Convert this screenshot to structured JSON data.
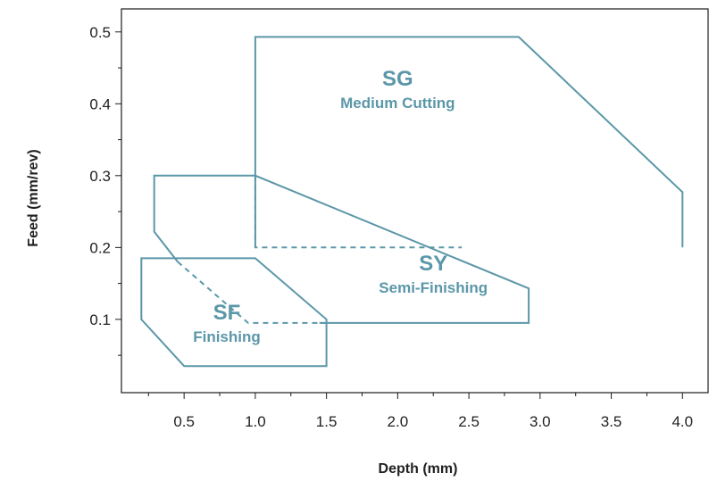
{
  "chart_data": {
    "type": "area",
    "xlabel": "Depth (mm)",
    "ylabel": "Feed (mm/rev)",
    "xlim": [
      0.06,
      4.18
    ],
    "ylim": [
      -0.002,
      0.532
    ],
    "xticks": [
      0.5,
      1.0,
      1.5,
      2.0,
      2.5,
      3.0,
      3.5,
      4.0
    ],
    "xtick_labels": [
      "0.5",
      "1.0",
      "1.5",
      "2.0",
      "2.5",
      "3.0",
      "3.5",
      "4.0"
    ],
    "yticks": [
      0.1,
      0.2,
      0.3,
      0.4,
      0.5
    ],
    "ytick_labels": [
      "0.1",
      "0.2",
      "0.3",
      "0.4",
      "0.5"
    ],
    "grid": false,
    "line_color": "#5b97a8",
    "regions": [
      {
        "code": "SG",
        "name": "Medium Cutting",
        "label_at": [
          2.0,
          0.42
        ],
        "outline": [
          [
            1.0,
            0.2
          ],
          [
            1.0,
            0.493
          ],
          [
            2.85,
            0.493
          ],
          [
            4.0,
            0.277
          ],
          [
            4.0,
            0.2
          ]
        ],
        "outline_closed": false,
        "dashed": [
          [
            [
              1.0,
              0.3
            ],
            [
              1.0,
              0.2
            ],
            [
              2.45,
              0.2
            ]
          ]
        ]
      },
      {
        "code": "SY",
        "name": "Semi-Finishing",
        "label_at": [
          2.25,
          0.163
        ],
        "outline": [
          [
            1.45,
            0.095
          ],
          [
            2.92,
            0.095
          ],
          [
            2.92,
            0.143
          ],
          [
            1.0,
            0.3
          ],
          [
            0.29,
            0.3
          ],
          [
            0.29,
            0.222
          ],
          [
            0.455,
            0.18
          ]
        ],
        "outline_closed": false,
        "dashed": [
          [
            [
              0.455,
              0.18
            ],
            [
              0.95,
              0.095
            ],
            [
              1.5,
              0.095
            ]
          ]
        ]
      },
      {
        "code": "SF",
        "name": "Finishing",
        "label_at": [
          0.8,
          0.095
        ],
        "outline": [
          [
            0.2,
            0.185
          ],
          [
            1.0,
            0.185
          ],
          [
            1.5,
            0.1
          ],
          [
            1.5,
            0.035
          ],
          [
            0.5,
            0.035
          ],
          [
            0.2,
            0.1
          ]
        ],
        "outline_closed": true,
        "dashed": []
      }
    ]
  }
}
